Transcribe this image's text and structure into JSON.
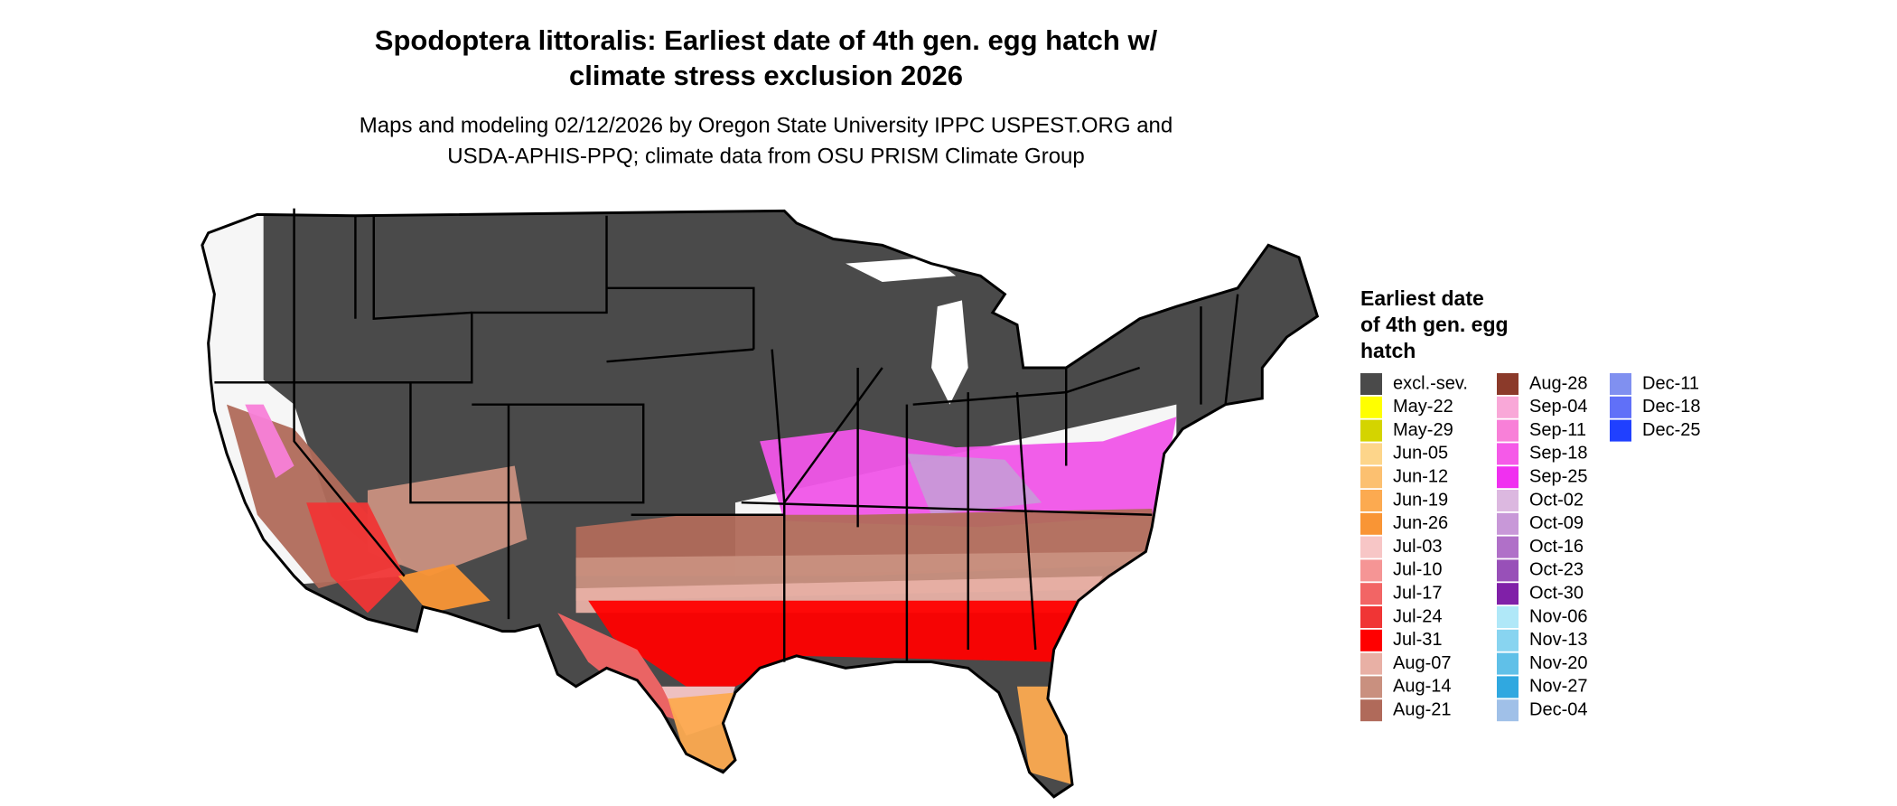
{
  "header": {
    "title": [
      "Spodoptera littoralis: Earliest date of 4th gen. egg hatch w/",
      "climate stress exclusion 2026"
    ],
    "subtitle": [
      "Maps and modeling 02/12/2026 by Oregon State University IPPC USPEST.ORG and",
      "USDA-APHIS-PPQ; climate data from OSU PRISM Climate Group"
    ]
  },
  "legend": {
    "title": [
      "Earliest date",
      "of 4th gen. egg",
      "hatch"
    ],
    "items": [
      {
        "label": "excl.-sev.",
        "color": "#4a4a4a"
      },
      {
        "label": "May-22",
        "color": "#ffff00"
      },
      {
        "label": "May-29",
        "color": "#d4d400"
      },
      {
        "label": "Jun-05",
        "color": "#fdd58a"
      },
      {
        "label": "Jun-12",
        "color": "#fcc070"
      },
      {
        "label": "Jun-19",
        "color": "#fcaa50"
      },
      {
        "label": "Jun-26",
        "color": "#f99535"
      },
      {
        "label": "Jul-03",
        "color": "#f7c6c6"
      },
      {
        "label": "Jul-10",
        "color": "#f59595"
      },
      {
        "label": "Jul-17",
        "color": "#f26565"
      },
      {
        "label": "Jul-24",
        "color": "#f03535"
      },
      {
        "label": "Jul-31",
        "color": "#ff0000"
      },
      {
        "label": "Aug-07",
        "color": "#e8b0a5"
      },
      {
        "label": "Aug-14",
        "color": "#c9907f"
      },
      {
        "label": "Aug-21",
        "color": "#b06a5a"
      },
      {
        "label": "Aug-28",
        "color": "#8b3a2a"
      },
      {
        "label": "Sep-04",
        "color": "#f9a8d8"
      },
      {
        "label": "Sep-11",
        "color": "#f880d8"
      },
      {
        "label": "Sep-18",
        "color": "#f55ae8"
      },
      {
        "label": "Sep-25",
        "color": "#f030f0"
      },
      {
        "label": "Oct-02",
        "color": "#dcb8e0"
      },
      {
        "label": "Oct-09",
        "color": "#c898d8"
      },
      {
        "label": "Oct-16",
        "color": "#b070c8"
      },
      {
        "label": "Oct-23",
        "color": "#9850b8"
      },
      {
        "label": "Oct-30",
        "color": "#8020a8"
      },
      {
        "label": "Nov-06",
        "color": "#b0e8f8"
      },
      {
        "label": "Nov-13",
        "color": "#88d4f0"
      },
      {
        "label": "Nov-20",
        "color": "#60c0e8"
      },
      {
        "label": "Nov-27",
        "color": "#30a8e0"
      },
      {
        "label": "Dec-04",
        "color": "#a0c0e8"
      },
      {
        "label": "Dec-11",
        "color": "#8090f0"
      },
      {
        "label": "Dec-18",
        "color": "#6070f8"
      },
      {
        "label": "Dec-25",
        "color": "#2040ff"
      }
    ]
  }
}
